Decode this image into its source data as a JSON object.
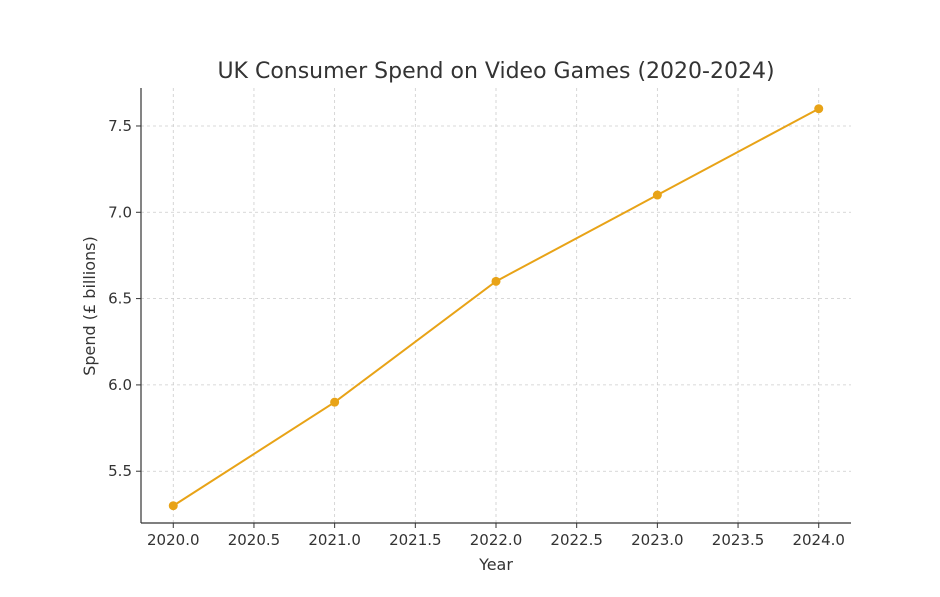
{
  "chart_data": {
    "type": "line",
    "title": "UK Consumer Spend on Video Games (2020-2024)",
    "xlabel": "Year",
    "ylabel": "Spend (£ billions)",
    "xlim": [
      2019.8,
      2024.2
    ],
    "ylim": [
      5.2,
      7.72
    ],
    "x_ticks": [
      2020.0,
      2020.5,
      2021.0,
      2021.5,
      2022.0,
      2022.5,
      2023.0,
      2023.5,
      2024.0
    ],
    "x_tick_labels": [
      "2020.0",
      "2020.5",
      "2021.0",
      "2021.5",
      "2022.0",
      "2022.5",
      "2023.0",
      "2023.5",
      "2024.0"
    ],
    "y_ticks": [
      5.5,
      6.0,
      6.5,
      7.0,
      7.5
    ],
    "y_tick_labels": [
      "5.5",
      "6.0",
      "6.5",
      "7.0",
      "7.5"
    ],
    "grid": true,
    "legend": "none",
    "series": [
      {
        "color": "#E8A317",
        "marker": "circle",
        "x": [
          2020,
          2021,
          2022,
          2023,
          2024
        ],
        "y": [
          5.3,
          5.9,
          6.6,
          7.1,
          7.6
        ]
      }
    ]
  }
}
